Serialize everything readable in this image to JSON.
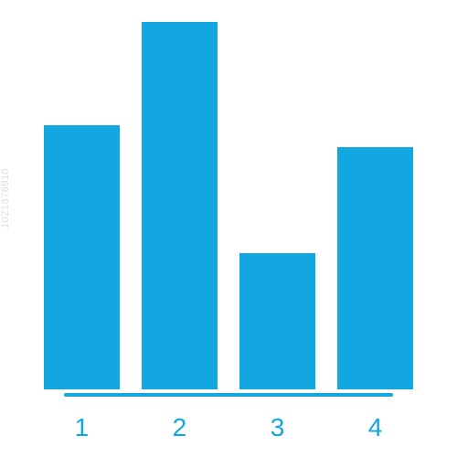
{
  "chart": {
    "type": "bar",
    "categories": [
      "1",
      "2",
      "3",
      "4"
    ],
    "values": [
      72,
      100,
      37,
      66
    ],
    "ymax": 100,
    "bar_color": "#13a7e1",
    "bar_width_pct": 20.5,
    "highlight_cap_on_index": 1,
    "highlight_cap_color": "#ffffff",
    "background_color": "#ffffff",
    "baseline_color": "#13a7e1",
    "baseline_width_pct": 72,
    "label_color": "#13a7e1",
    "label_fontsize": 28,
    "label_fontweight": 400
  },
  "watermark": "1021376910"
}
